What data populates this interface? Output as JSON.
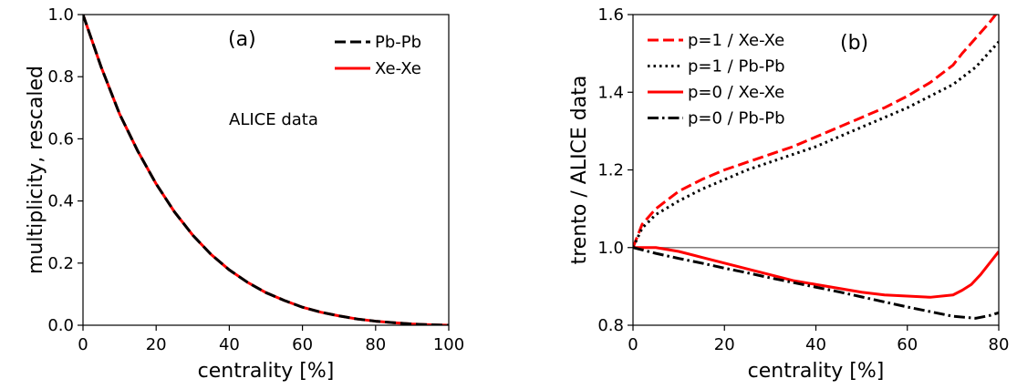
{
  "chart_data": [
    {
      "type": "line",
      "panel_label": "(a)",
      "annotation": "ALICE data",
      "xlabel": "centrality [%]",
      "ylabel": "multiplicity, rescaled",
      "xlim": [
        0,
        100
      ],
      "ylim": [
        0.0,
        1.0
      ],
      "xticks": [
        0,
        20,
        40,
        60,
        80,
        100
      ],
      "yticks": [
        0.0,
        0.2,
        0.4,
        0.6,
        0.8,
        1.0
      ],
      "xtick_labels": [
        "0",
        "20",
        "40",
        "60",
        "80",
        "100"
      ],
      "ytick_labels": [
        "0.0",
        "0.2",
        "0.4",
        "0.6",
        "0.8",
        "1.0"
      ],
      "grid": false,
      "legend_position": "top-right",
      "series": [
        {
          "name": "Pb-Pb",
          "color": "#000000",
          "style": "dashed",
          "x": [
            0,
            5,
            10,
            15,
            20,
            25,
            30,
            35,
            40,
            45,
            50,
            55,
            60,
            65,
            70,
            75,
            80,
            85,
            90,
            95,
            100
          ],
          "y": [
            1.0,
            0.83,
            0.68,
            0.56,
            0.455,
            0.365,
            0.29,
            0.228,
            0.178,
            0.138,
            0.105,
            0.08,
            0.058,
            0.042,
            0.03,
            0.02,
            0.013,
            0.008,
            0.004,
            0.0015,
            0.0
          ]
        },
        {
          "name": "Xe-Xe",
          "color": "#ff0000",
          "style": "solid",
          "x": [
            0,
            5,
            10,
            15,
            20,
            25,
            30,
            35,
            40,
            45,
            50,
            55,
            60,
            65,
            70,
            75,
            80,
            85,
            90,
            95,
            100
          ],
          "y": [
            1.0,
            0.83,
            0.68,
            0.56,
            0.455,
            0.365,
            0.29,
            0.228,
            0.178,
            0.138,
            0.105,
            0.08,
            0.058,
            0.042,
            0.03,
            0.02,
            0.013,
            0.008,
            0.004,
            0.0015,
            0.0
          ]
        }
      ]
    },
    {
      "type": "line",
      "panel_label": "(b)",
      "xlabel": "centrality [%]",
      "ylabel": "trento / ALICE data",
      "xlim": [
        0,
        80
      ],
      "ylim": [
        0.8,
        1.6
      ],
      "xticks": [
        0,
        20,
        40,
        60,
        80
      ],
      "yticks": [
        0.8,
        1.0,
        1.2,
        1.4,
        1.6
      ],
      "xtick_labels": [
        "0",
        "20",
        "40",
        "60",
        "80"
      ],
      "ytick_labels": [
        "0.8",
        "1.0",
        "1.2",
        "1.4",
        "1.6"
      ],
      "grid": false,
      "legend_position": "top-left",
      "reference_line": {
        "y": 1.0,
        "color": "#808080"
      },
      "series": [
        {
          "name": "p=1 / Xe-Xe",
          "color": "#ff0000",
          "style": "dashed",
          "x": [
            0,
            2,
            5,
            10,
            15,
            20,
            25,
            30,
            35,
            40,
            45,
            50,
            55,
            60,
            65,
            70,
            72,
            75,
            78,
            80
          ],
          "y": [
            1.0,
            1.06,
            1.1,
            1.145,
            1.175,
            1.2,
            1.22,
            1.24,
            1.26,
            1.285,
            1.31,
            1.335,
            1.36,
            1.39,
            1.425,
            1.47,
            1.5,
            1.54,
            1.58,
            1.61
          ]
        },
        {
          "name": "p=1 / Pb-Pb",
          "color": "#000000",
          "style": "dotted",
          "x": [
            0,
            2,
            5,
            10,
            15,
            20,
            25,
            30,
            35,
            40,
            45,
            50,
            55,
            60,
            65,
            70,
            75,
            80
          ],
          "y": [
            1.0,
            1.05,
            1.085,
            1.12,
            1.15,
            1.175,
            1.2,
            1.22,
            1.24,
            1.26,
            1.285,
            1.31,
            1.335,
            1.36,
            1.39,
            1.42,
            1.465,
            1.53
          ]
        },
        {
          "name": "p=0 / Xe-Xe",
          "color": "#ff0000",
          "style": "solid",
          "x": [
            0,
            5,
            10,
            15,
            20,
            25,
            30,
            35,
            40,
            45,
            50,
            55,
            60,
            65,
            70,
            72,
            74,
            76,
            78,
            80
          ],
          "y": [
            1.0,
            1.0,
            0.99,
            0.975,
            0.96,
            0.945,
            0.93,
            0.915,
            0.905,
            0.895,
            0.885,
            0.878,
            0.875,
            0.872,
            0.878,
            0.89,
            0.905,
            0.93,
            0.96,
            0.99
          ]
        },
        {
          "name": "p=0 / Pb-Pb",
          "color": "#000000",
          "style": "dashdot",
          "x": [
            0,
            5,
            10,
            15,
            20,
            25,
            30,
            35,
            40,
            45,
            50,
            55,
            60,
            65,
            70,
            73,
            75,
            78,
            80
          ],
          "y": [
            1.0,
            0.985,
            0.972,
            0.96,
            0.947,
            0.935,
            0.922,
            0.91,
            0.898,
            0.886,
            0.873,
            0.86,
            0.847,
            0.835,
            0.823,
            0.82,
            0.818,
            0.825,
            0.832
          ]
        }
      ]
    }
  ]
}
